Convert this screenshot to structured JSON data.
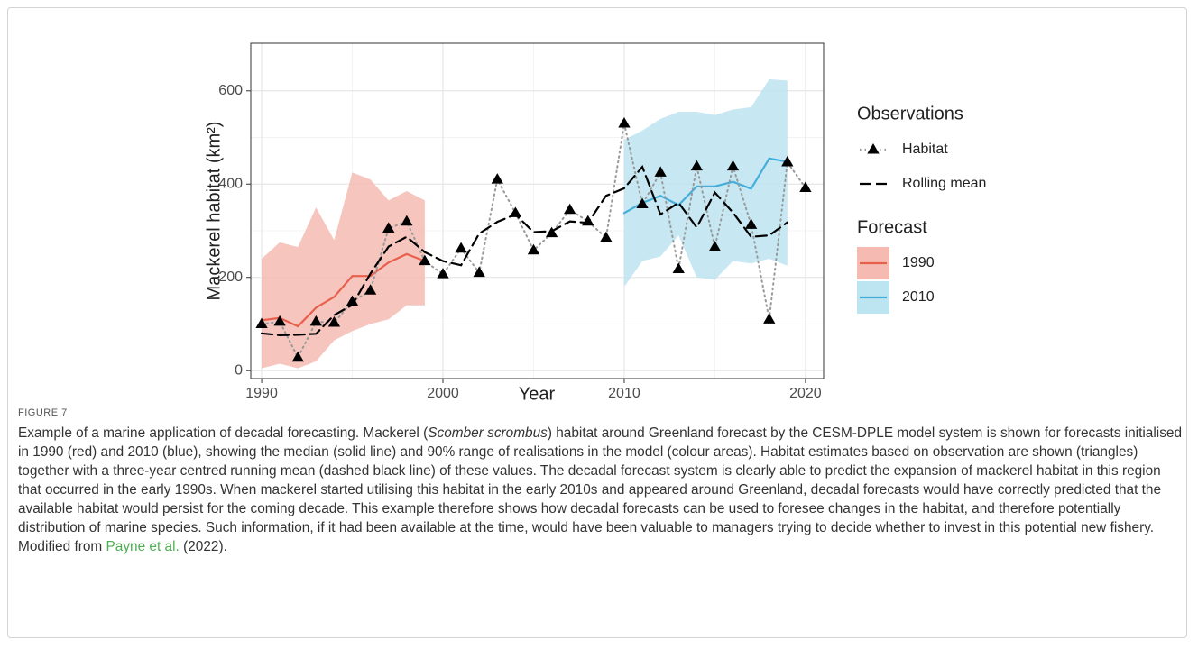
{
  "chart_data": {
    "type": "line",
    "y_label": "Mackerel habitat (km²)",
    "x_label": "Year",
    "x": [
      1990,
      1991,
      1992,
      1993,
      1994,
      1995,
      1996,
      1997,
      1998,
      1999,
      2000,
      2001,
      2002,
      2003,
      2004,
      2005,
      2006,
      2007,
      2008,
      2009,
      2010,
      2011,
      2012,
      2013,
      2014,
      2015,
      2016,
      2017,
      2018,
      2019,
      2020
    ],
    "xlim": [
      1989.4,
      2021.0
    ],
    "xticks": [
      1990,
      2000,
      2010,
      2020
    ],
    "ylim": [
      -17,
      702
    ],
    "yticks": [
      0,
      200,
      400,
      600
    ],
    "grid": true,
    "series_groups": [
      {
        "title": "Observations",
        "series": [
          {
            "name": "Habitat",
            "color": "#000000",
            "line_color": "#999999",
            "line_style": "dotted",
            "marker": "triangle",
            "values": [
              100,
              105,
              28,
              105,
              103,
              148,
              172,
              305,
              320,
              235,
              207,
              262,
              210,
              410,
              338,
              258,
              295,
              345,
              320,
              285,
              530,
              357,
              425,
              218,
              438,
              265,
              438,
              313,
              110,
              447,
              392
            ]
          },
          {
            "name": "Rolling mean",
            "color": "#000000",
            "line_style": "dashed",
            "values": [
              80,
              76,
              77,
              79,
              119,
              141,
              208,
              266,
              287,
              254,
              235,
              226,
              294,
              319,
              335,
              297,
              299,
              320,
              317,
              375,
              391,
              437,
              335,
              360,
              307,
              382,
              339,
              287,
              290,
              318,
              null
            ]
          }
        ]
      },
      {
        "title": "Forecast",
        "series": [
          {
            "name": "1990",
            "color": "#e8604c",
            "band_color": "#f5bbb3",
            "line_style": "solid",
            "values": [
              108,
              113,
              95,
              135,
              158,
              203,
              203,
              232,
              250,
              235,
              null,
              null,
              null,
              null,
              null,
              null,
              null,
              null,
              null,
              null,
              null,
              null,
              null,
              null,
              null,
              null,
              null,
              null,
              null,
              null,
              null
            ],
            "lower": [
              5,
              15,
              5,
              20,
              65,
              85,
              100,
              110,
              140,
              140,
              null,
              null,
              null,
              null,
              null,
              null,
              null,
              null,
              null,
              null,
              null,
              null,
              null,
              null,
              null,
              null,
              null,
              null,
              null,
              null,
              null
            ],
            "upper": [
              240,
              275,
              265,
              350,
              280,
              425,
              410,
              365,
              385,
              365,
              null,
              null,
              null,
              null,
              null,
              null,
              null,
              null,
              null,
              null,
              null,
              null,
              null,
              null,
              null,
              null,
              null,
              null,
              null,
              null,
              null
            ]
          },
          {
            "name": "2010",
            "color": "#44aedb",
            "band_color": "#bde4f1",
            "line_style": "solid",
            "values": [
              null,
              null,
              null,
              null,
              null,
              null,
              null,
              null,
              null,
              null,
              null,
              null,
              null,
              null,
              null,
              null,
              null,
              null,
              null,
              null,
              338,
              360,
              375,
              355,
              395,
              395,
              405,
              390,
              455,
              448,
              null
            ],
            "lower": [
              null,
              null,
              null,
              null,
              null,
              null,
              null,
              null,
              null,
              null,
              null,
              null,
              null,
              null,
              null,
              null,
              null,
              null,
              null,
              null,
              180,
              235,
              245,
              290,
              200,
              195,
              235,
              230,
              240,
              225,
              null
            ],
            "upper": [
              null,
              null,
              null,
              null,
              null,
              null,
              null,
              null,
              null,
              null,
              null,
              null,
              null,
              null,
              null,
              null,
              null,
              null,
              null,
              null,
              495,
              515,
              540,
              555,
              555,
              548,
              560,
              565,
              625,
              622,
              null
            ]
          }
        ]
      }
    ]
  },
  "caption": {
    "label": "FIGURE 7",
    "text_before": "Example of a marine application of decadal forecasting. Mackerel (",
    "italic": "Scomber scrombus",
    "text_after": ") habitat around Greenland forecast by the CESM-DPLE model system is shown for forecasts initialised in 1990 (red) and 2010 (blue), showing the median (solid line) and 90% range of realisations in the model (colour areas). Habitat estimates based on observation are shown (triangles) together with a three-year centred running mean (dashed black line) of these values. The decadal forecast system is clearly able to predict the expansion of mackerel habitat in this region that occurred in the early 1990s. When mackerel started utilising this habitat in the early 2010s and appeared around Greenland, decadal forecasts would have correctly predicted that the available habitat would persist for the coming decade. This example therefore shows how decadal forecasts can be used to foresee changes in the habitat, and therefore potentially distribution of marine species. Such information, if it had been available at the time, would have been valuable to managers trying to decide whether to invest in this potential new fishery. Modified from ",
    "citation": "Payne et al.",
    "citation_year": " (2022)."
  }
}
